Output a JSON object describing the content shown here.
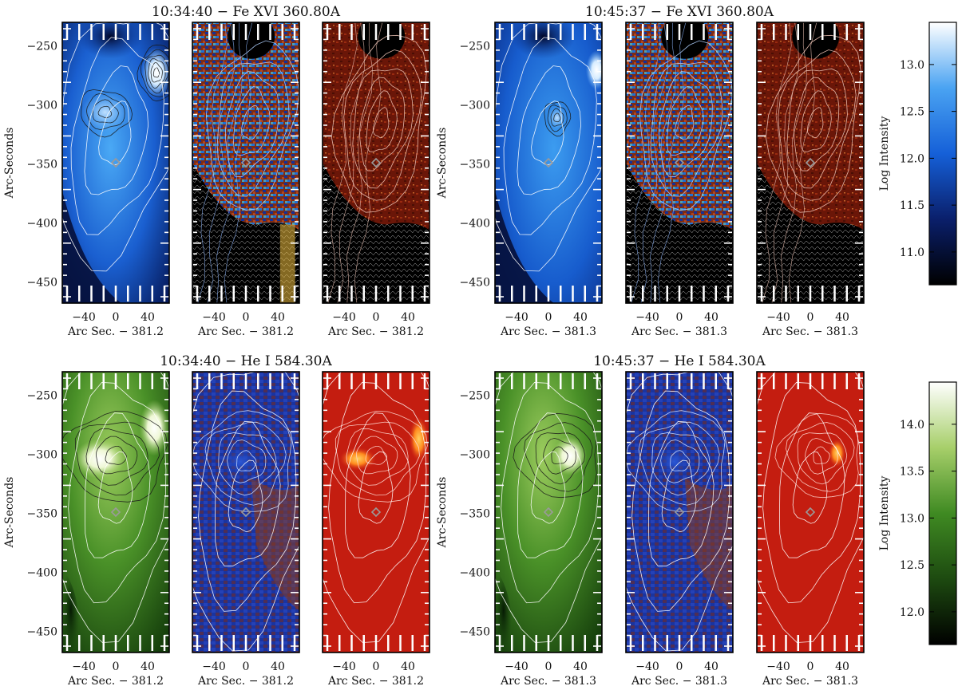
{
  "chart_data": {
    "type": "heatmap",
    "units": {
      "x": "Arc Sec.",
      "y": "Arc-Seconds",
      "colorbar": "Log Intensity"
    },
    "rows": [
      {
        "id": "fe",
        "colorbar_label": "Log Intensity",
        "colormap": "blue",
        "colorbar_ticks": [
          "11.0",
          "11.5",
          "12.0",
          "12.5",
          "13.0"
        ],
        "colorbar_values": [
          11.0,
          11.5,
          12.0,
          12.5,
          13.0
        ],
        "colorbar_range": [
          10.65,
          13.45
        ],
        "groups": [
          {
            "title": "10:34:40 − Fe XVI 360.80A",
            "xlabel": "Arc Sec. − 381.2",
            "panels": [
              "intensity",
              "velocity",
              "width"
            ]
          },
          {
            "title": "10:45:37 − Fe XVI 360.80A",
            "xlabel": "Arc Sec. − 381.3",
            "panels": [
              "intensity",
              "velocity",
              "width"
            ]
          }
        ]
      },
      {
        "id": "he",
        "colorbar_label": "Log Intensity",
        "colormap": "green",
        "colorbar_ticks": [
          "12.0",
          "12.5",
          "13.0",
          "13.5",
          "14.0"
        ],
        "colorbar_values": [
          12.0,
          12.5,
          13.0,
          13.5,
          14.0
        ],
        "colorbar_range": [
          11.65,
          14.45
        ],
        "groups": [
          {
            "title": "10:34:40 − He I 584.30A",
            "xlabel": "Arc Sec. − 381.2",
            "panels": [
              "intensity",
              "velocity",
              "width"
            ]
          },
          {
            "title": "10:45:37 − He I 584.30A",
            "xlabel": "Arc Sec. − 381.3",
            "panels": [
              "intensity",
              "velocity",
              "width"
            ]
          }
        ]
      }
    ],
    "x_ticks": [
      "−40",
      "0",
      "40"
    ],
    "x_tick_values": [
      -40,
      0,
      40
    ],
    "xlim": [
      -67,
      67
    ],
    "y_ticks": [
      "−250",
      "−300",
      "−350",
      "−400",
      "−450"
    ],
    "y_tick_values": [
      -250,
      -300,
      -350,
      -400,
      -450
    ],
    "ylim": [
      -468,
      -230
    ],
    "ylabel": "Arc-Seconds",
    "marker": {
      "shape": "diamond",
      "x": 0,
      "y": -349
    },
    "colors": {
      "fe_intensity": [
        "#000000",
        "#0a1f6b",
        "#1560d8",
        "#4aa3f2",
        "#ffffff"
      ],
      "he_intensity": [
        "#000000",
        "#1d4a10",
        "#3f8a22",
        "#a7cf6a",
        "#ffffff"
      ],
      "fe_velocity": "#8a2c12",
      "he_velocity_blue": "#16309c",
      "he_velocity_red": "#8a2c12",
      "width_map": "#6e1408",
      "he_width_map": "#c41d10",
      "contour": "#ffffff"
    }
  }
}
